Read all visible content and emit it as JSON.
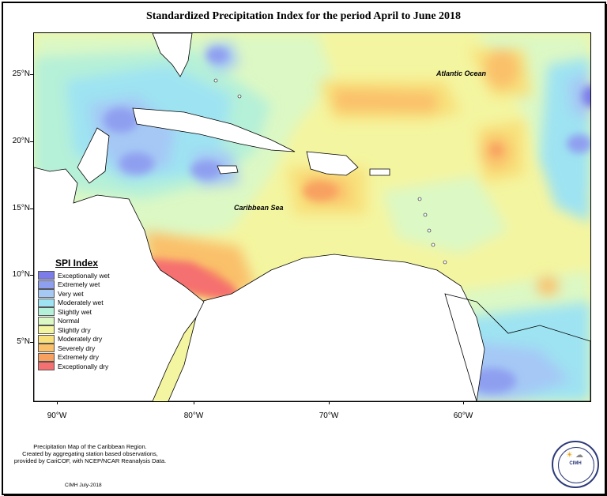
{
  "title": "Standardized Precipitation Index for the period April to June 2018",
  "labels": {
    "atlantic": "Atlantic Ocean",
    "caribbean": "Caribbean Sea"
  },
  "y_ticks": [
    "25°N",
    "20°N",
    "15°N",
    "10°N",
    "5°N"
  ],
  "x_ticks": [
    "90°W",
    "80°W",
    "70°W",
    "60°W"
  ],
  "legend": {
    "title": "SPI Index",
    "items": [
      {
        "label": "Exceptionally wet",
        "color": "#7b7bea"
      },
      {
        "label": "Extremely wet",
        "color": "#8f9ff0"
      },
      {
        "label": "Very wet",
        "color": "#a5c8f5"
      },
      {
        "label": "Moderately wet",
        "color": "#9ee3f2"
      },
      {
        "label": "Slightly wet",
        "color": "#b5f0d8"
      },
      {
        "label": "Normal",
        "color": "#dcf8c4"
      },
      {
        "label": "Slightly dry",
        "color": "#f4f5a0"
      },
      {
        "label": "Moderately dry",
        "color": "#f8e07a"
      },
      {
        "label": "Severely dry",
        "color": "#fac06a"
      },
      {
        "label": "Extremely dry",
        "color": "#f8a060"
      },
      {
        "label": "Exceptionally dry",
        "color": "#f57070"
      }
    ]
  },
  "footer": {
    "line1": "Precipitation Map of the Caribbean Region.",
    "line2": "Created by aggregating station based observations,",
    "line3": "provided by CariCOF, with NCEP/NCAR Reanalysis Data.",
    "date": "CIMH July-2018"
  },
  "logo": {
    "text": "CIMH"
  }
}
